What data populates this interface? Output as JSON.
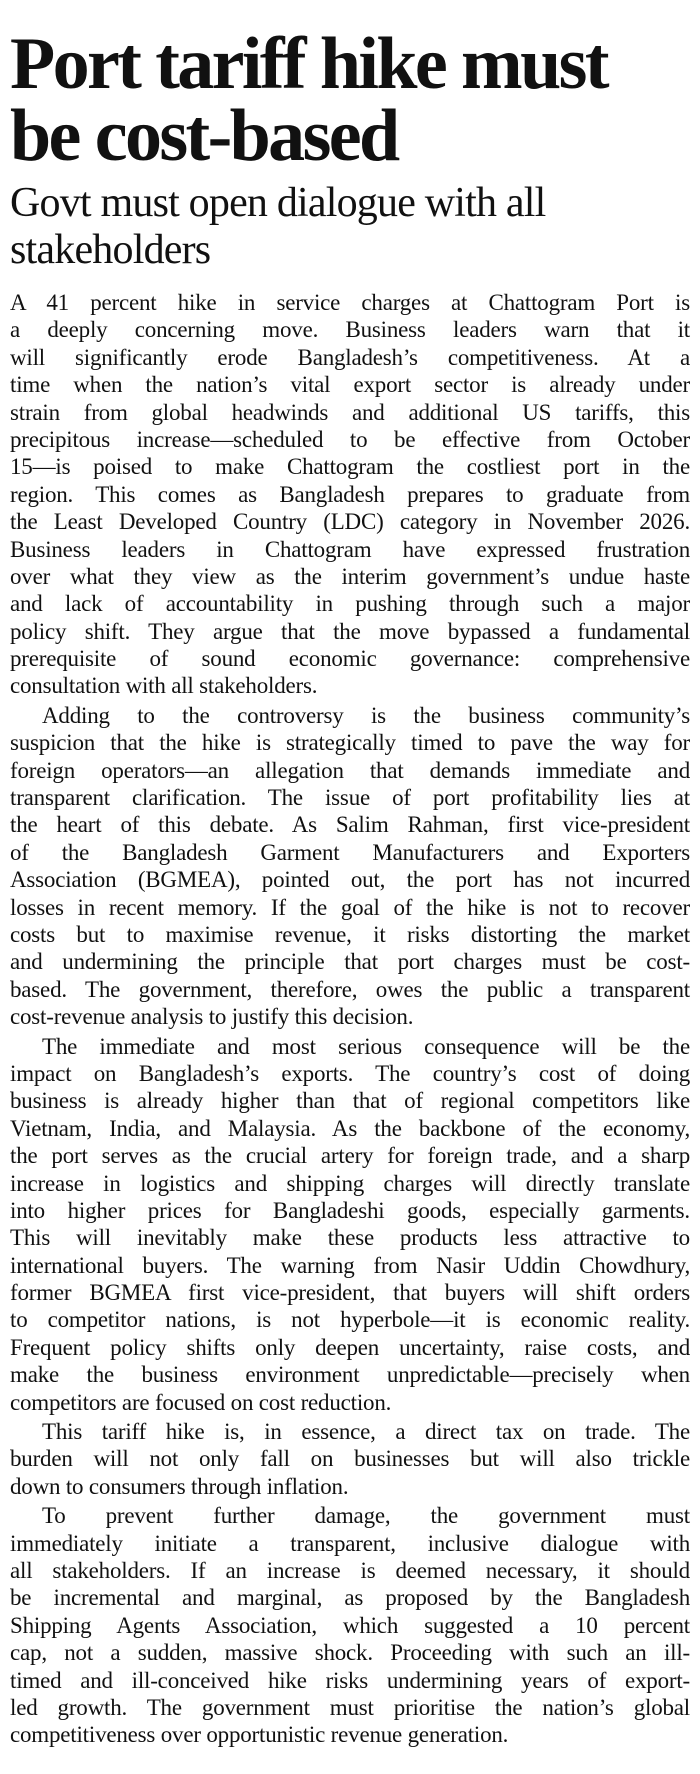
{
  "article": {
    "headline_lines": [
      "Port tariff hike must",
      "be cost-based"
    ],
    "subheadline_lines": [
      "Govt must open dialogue with all",
      "stakeholders"
    ],
    "paragraphs": [
      [
        "A 41 percent hike in service charges at Chattogram Port is",
        "a deeply concerning move. Business leaders warn that it",
        "will significantly erode Bangladesh’s competitiveness. At a",
        "time when the nation’s vital export sector is already under",
        "strain from global headwinds and additional US tariffs, this",
        "precipitous increase—scheduled to be effective from October",
        "15—is poised to make Chattogram the costliest port in the",
        "region. This comes as Bangladesh prepares to graduate from",
        "the Least Developed Country (LDC) category in November 2026.",
        "Business leaders in Chattogram have expressed frustration",
        "over what they view as the interim government’s undue haste",
        "and lack of accountability in pushing through such a major",
        "policy shift. They argue that the move bypassed a fundamental",
        "prerequisite of sound economic governance: comprehensive",
        "consultation with all stakeholders."
      ],
      [
        "Adding to the controversy is the business community’s",
        "suspicion that the hike is strategically timed to pave the way for",
        "foreign operators—an allegation that demands immediate and",
        "transparent clarification. The issue of port profitability lies at",
        "the heart of this debate. As Salim Rahman, first vice-president",
        "of the Bangladesh Garment Manufacturers and Exporters",
        "Association (BGMEA), pointed out, the port has not incurred",
        "losses in recent memory. If the goal of the hike is not to recover",
        "costs but to maximise revenue, it risks distorting the market",
        "and undermining the principle that port charges must be cost-",
        "based. The government, therefore, owes the public a transparent",
        "cost-revenue analysis to justify this decision."
      ],
      [
        "The immediate and most serious consequence will be the",
        "impact on Bangladesh’s exports. The country’s cost of doing",
        "business is already higher than that of regional competitors like",
        "Vietnam, India, and Malaysia. As the backbone of the economy,",
        "the port serves as the crucial artery for foreign trade, and a sharp",
        "increase in logistics and shipping charges will directly translate",
        "into higher prices for Bangladeshi goods, especially garments.",
        "This will inevitably make these products less attractive to",
        "international buyers. The warning from Nasir Uddin Chowdhury,",
        "former BGMEA first vice-president, that buyers will shift orders",
        "to competitor nations, is not hyperbole—it is economic reality.",
        "Frequent policy shifts only deepen uncertainty, raise costs, and",
        "make the business environment unpredictable—precisely when",
        "competitors are focused on cost reduction."
      ],
      [
        "This tariff hike is, in essence, a direct tax on trade. The",
        "burden will not only fall on businesses but will also trickle",
        "down to consumers through inflation."
      ],
      [
        "To prevent further damage, the government must",
        "immediately initiate a transparent, inclusive dialogue with",
        "all stakeholders. If an increase is deemed necessary, it should",
        "be incremental and marginal, as proposed by the Bangladesh",
        "Shipping Agents Association, which suggested a 10 percent",
        "cap, not a sudden, massive shock. Proceeding with such an ill-",
        "timed and ill-conceived hike risks undermining years of export-",
        "led growth. The government must prioritise the nation’s global",
        "competitiveness over opportunistic revenue generation."
      ]
    ]
  }
}
